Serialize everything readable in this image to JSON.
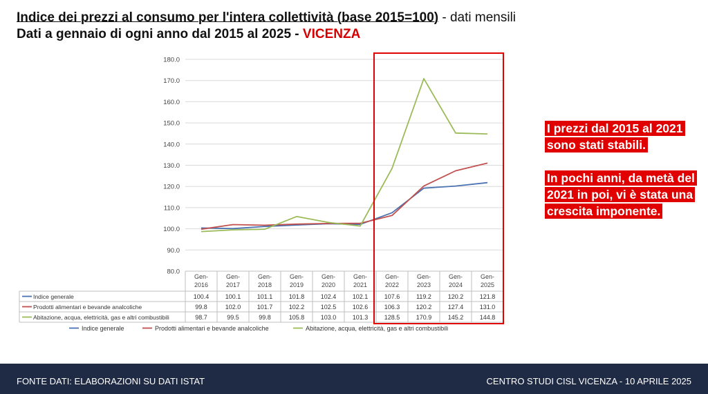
{
  "title": {
    "line1_bold": "Indice dei prezzi al consumo per l'intera collettività (base 2015=100)",
    "line1_rest": " - dati mensili",
    "line2_prefix": "Dati a gennaio di ogni anno dal 2015 al 2025 - ",
    "line2_city": "VICENZA"
  },
  "note": {
    "p1": "I prezzi dal 2015 al 2021 sono stati stabili.",
    "p2": "In pochi anni, da metà del 2021 in poi, vi è stata una crescita imponente."
  },
  "footer": {
    "left": "FONTE DATI:  ELABORAZIONI SU DATI ISTAT",
    "right": "CENTRO STUDI CISL VICENZA -  10 APRILE 2025"
  },
  "colors": {
    "series": [
      "#4a72b0",
      "#c0504d",
      "#9bbb59"
    ],
    "highlight": "#e00000",
    "footer_bg": "#1f2a44"
  },
  "chart_data": {
    "type": "line",
    "categories": [
      "Gen-\n2016",
      "Gen-\n2017",
      "Gen-\n2018",
      "Gen-\n2019",
      "Gen-\n2020",
      "Gen-\n2021",
      "Gen-\n2022",
      "Gen-\n2023",
      "Gen-\n2024",
      "Gen-\n2025"
    ],
    "series": [
      {
        "name": "Indice generale",
        "values": [
          100.4,
          100.1,
          101.1,
          101.8,
          102.4,
          102.1,
          107.6,
          119.2,
          120.2,
          121.8
        ]
      },
      {
        "name": "Prodotti alimentari e bevande analcoliche",
        "values": [
          99.8,
          102.0,
          101.7,
          102.2,
          102.5,
          102.6,
          106.3,
          120.2,
          127.4,
          131.0
        ]
      },
      {
        "name": "Abitazione, acqua, elettricità, gas e altri combustibili",
        "values": [
          98.7,
          99.5,
          99.8,
          105.8,
          103.0,
          101.3,
          128.5,
          170.9,
          145.2,
          144.8
        ]
      }
    ],
    "ylim": [
      80,
      180
    ],
    "yticks": [
      "80.0",
      "90.0",
      "100.0",
      "110.0",
      "120.0",
      "130.0",
      "140.0",
      "150.0",
      "160.0",
      "170.0",
      "180.0"
    ],
    "data_table": true,
    "grid": true,
    "legend": "bottom",
    "highlight_from_category": 6
  }
}
